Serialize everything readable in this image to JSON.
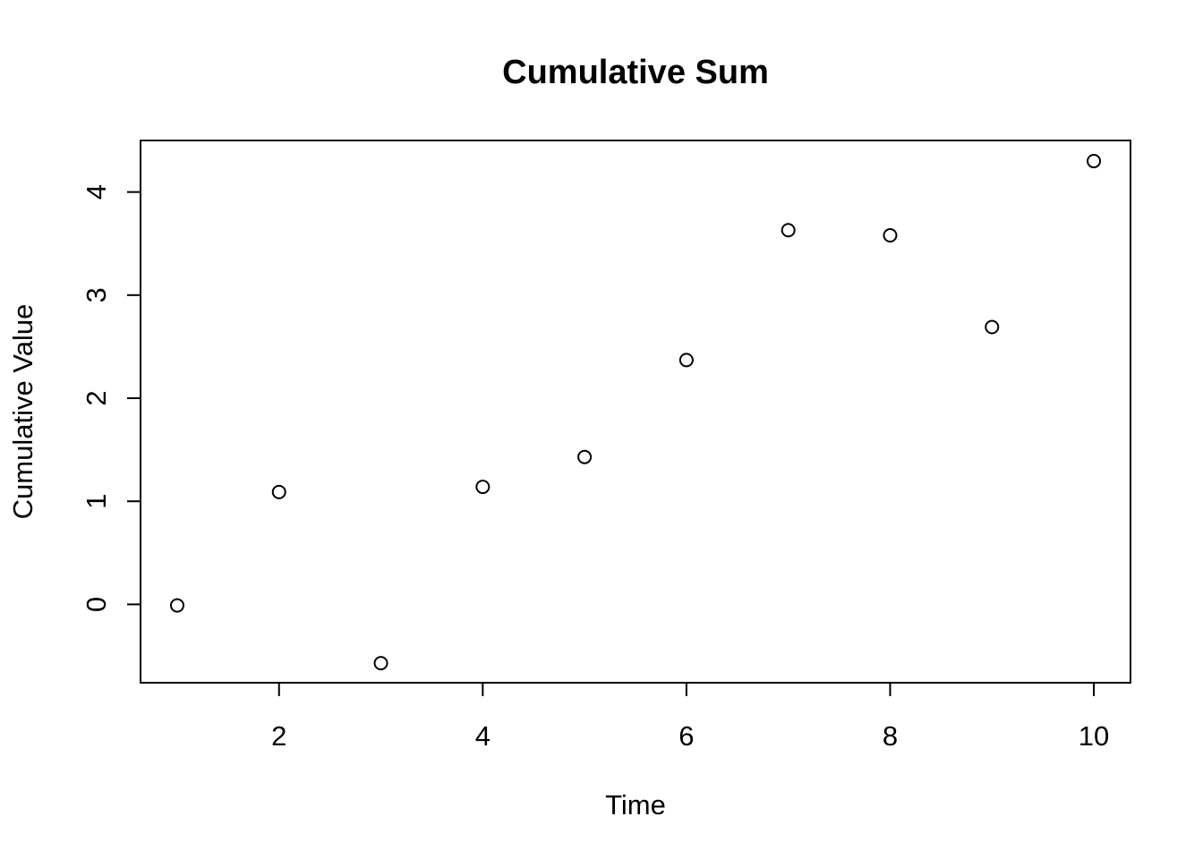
{
  "chart_data": {
    "type": "scatter",
    "title": "Cumulative Sum",
    "xlabel": "Time",
    "ylabel": "Cumulative Value",
    "x": [
      1,
      2,
      3,
      4,
      5,
      6,
      7,
      8,
      9,
      10
    ],
    "y": [
      -0.01,
      1.09,
      -0.57,
      1.14,
      1.43,
      2.37,
      3.63,
      3.58,
      2.69,
      4.3
    ],
    "xlim": [
      0.64,
      10.36
    ],
    "ylim": [
      -0.76,
      4.5
    ],
    "xticks": [
      2,
      4,
      6,
      8,
      10
    ],
    "yticks": [
      0,
      1,
      2,
      3,
      4
    ],
    "xtick_labels": [
      "2",
      "4",
      "6",
      "8",
      "10"
    ],
    "ytick_labels": [
      "0",
      "1",
      "2",
      "3",
      "4"
    ],
    "grid": false,
    "legend": null,
    "marker": "open-circle",
    "colors": {
      "marker": "#000000",
      "axes": "#000000",
      "background": "#ffffff"
    }
  }
}
